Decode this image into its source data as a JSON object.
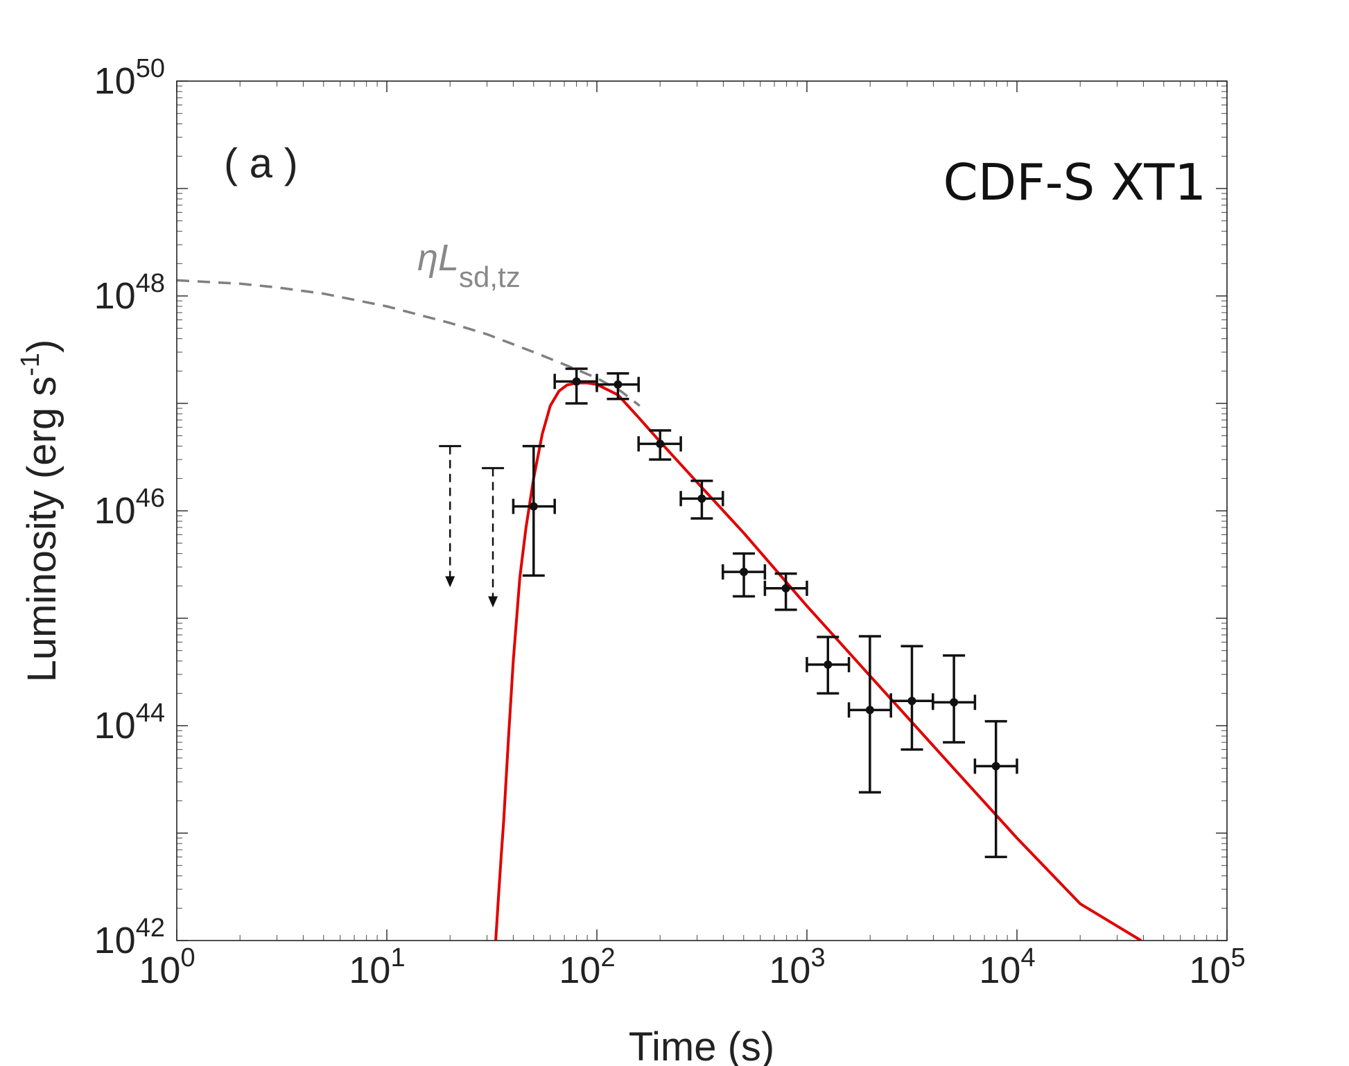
{
  "chart_data": {
    "type": "scatter",
    "panel_label": "( a )",
    "title": "CDF-S XT1",
    "xlabel": "Time (s)",
    "ylabel": "Luminosity (erg s",
    "ylabel_sup": "-1",
    "ylabel_close": ")",
    "xscale": "log",
    "yscale": "log",
    "xlim": [
      1,
      100000
    ],
    "ylim": [
      1e+42,
      1e+50
    ],
    "x_ticks": [
      {
        "base": "10",
        "exp": "0",
        "value": 1
      },
      {
        "base": "10",
        "exp": "1",
        "value": 10
      },
      {
        "base": "10",
        "exp": "2",
        "value": 100
      },
      {
        "base": "10",
        "exp": "3",
        "value": 1000
      },
      {
        "base": "10",
        "exp": "4",
        "value": 10000
      },
      {
        "base": "10",
        "exp": "5",
        "value": 100000
      }
    ],
    "y_ticks": [
      {
        "base": "10",
        "exp": "42",
        "value": 1e+42
      },
      {
        "base": "10",
        "exp": "44",
        "value": 1e+44
      },
      {
        "base": "10",
        "exp": "46",
        "value": 1e+46
      },
      {
        "base": "10",
        "exp": "48",
        "value": 1e+48
      },
      {
        "base": "10",
        "exp": "50",
        "value": 1e+50
      }
    ],
    "grid": false,
    "series": [
      {
        "name": "data",
        "style": "points-with-errorbars",
        "color": "#000000",
        "points": [
          {
            "x": 50,
            "xlo": 40,
            "xhi": 63,
            "y": 1.1e+46,
            "ylo": 2.5e+45,
            "yhi": 4e+46
          },
          {
            "x": 80,
            "xlo": 63,
            "xhi": 100,
            "y": 1.6e+47,
            "ylo": 1e+47,
            "yhi": 2.1e+47
          },
          {
            "x": 126,
            "xlo": 100,
            "xhi": 158,
            "y": 1.5e+47,
            "ylo": 1.1e+47,
            "yhi": 1.9e+47
          },
          {
            "x": 200,
            "xlo": 158,
            "xhi": 251,
            "y": 4.2e+46,
            "ylo": 3e+46,
            "yhi": 5.6e+46
          },
          {
            "x": 316,
            "xlo": 251,
            "xhi": 398,
            "y": 1.3e+46,
            "ylo": 8.5e+45,
            "yhi": 1.9e+46
          },
          {
            "x": 501,
            "xlo": 398,
            "xhi": 631,
            "y": 2.7e+45,
            "ylo": 1.6e+45,
            "yhi": 4e+45
          },
          {
            "x": 794,
            "xlo": 631,
            "xhi": 1000,
            "y": 1.9e+45,
            "ylo": 1.2e+45,
            "yhi": 2.6e+45
          },
          {
            "x": 1259,
            "xlo": 1000,
            "xhi": 1585,
            "y": 3.7e+44,
            "ylo": 2e+44,
            "yhi": 6.7e+44
          },
          {
            "x": 1995,
            "xlo": 1585,
            "xhi": 2512,
            "y": 1.4e+44,
            "ylo": 2.4e+43,
            "yhi": 6.8e+44
          },
          {
            "x": 3162,
            "xlo": 2512,
            "xhi": 3981,
            "y": 1.7e+44,
            "ylo": 6e+43,
            "yhi": 5.5e+44
          },
          {
            "x": 5012,
            "xlo": 3981,
            "xhi": 6310,
            "y": 1.65e+44,
            "ylo": 7e+43,
            "yhi": 4.5e+44
          },
          {
            "x": 7943,
            "xlo": 6310,
            "xhi": 10000,
            "y": 4.2e+43,
            "ylo": 6e+42,
            "yhi": 1.1e+44
          }
        ]
      },
      {
        "name": "upper limits",
        "style": "upper-limit-arrows",
        "color": "#000000",
        "points": [
          {
            "x": 20,
            "y": 4e+46,
            "arrow_to": 2e+45
          },
          {
            "x": 32,
            "y": 2.5e+46,
            "arrow_to": 1.3e+45
          }
        ]
      },
      {
        "name": "model",
        "style": "solid-line",
        "color": "#e00000",
        "x": [
          33,
          34,
          35,
          36,
          38,
          40,
          43,
          46,
          50,
          55,
          60,
          66,
          72,
          80,
          90,
          100,
          126,
          158,
          200,
          316,
          501,
          1000,
          2000,
          5000,
          10000,
          20000,
          39000
        ],
        "y": [
          1e+42,
          2.5e+42,
          6e+42,
          1.3e+43,
          8e+43,
          4e+44,
          2.4e+45,
          7e+45,
          2e+46,
          5.2e+46,
          9.5e+46,
          1.3e+47,
          1.48e+47,
          1.55e+47,
          1.55e+47,
          1.5e+47,
          1.2e+47,
          7.4e+46,
          4.4e+46,
          1.65e+46,
          6.2e+45,
          1.3e+45,
          2.9e+44,
          4e+43,
          9e+42,
          2.2e+42,
          1e+42
        ]
      },
      {
        "name": "ηLsd,tz",
        "style": "dashed-line",
        "color": "#808080",
        "label_main": "ηL",
        "label_sub": "sd,tz",
        "x": [
          1,
          2,
          3,
          5,
          10,
          20,
          30,
          50,
          70,
          100,
          130,
          160
        ],
        "y": [
          1.4e+48,
          1.3e+48,
          1.2e+48,
          1.05e+48,
          8e+47,
          5.6e+47,
          4.4e+47,
          3e+47,
          2.3e+47,
          1.72e+47,
          1.3e+47,
          9.5e+46
        ]
      }
    ]
  }
}
